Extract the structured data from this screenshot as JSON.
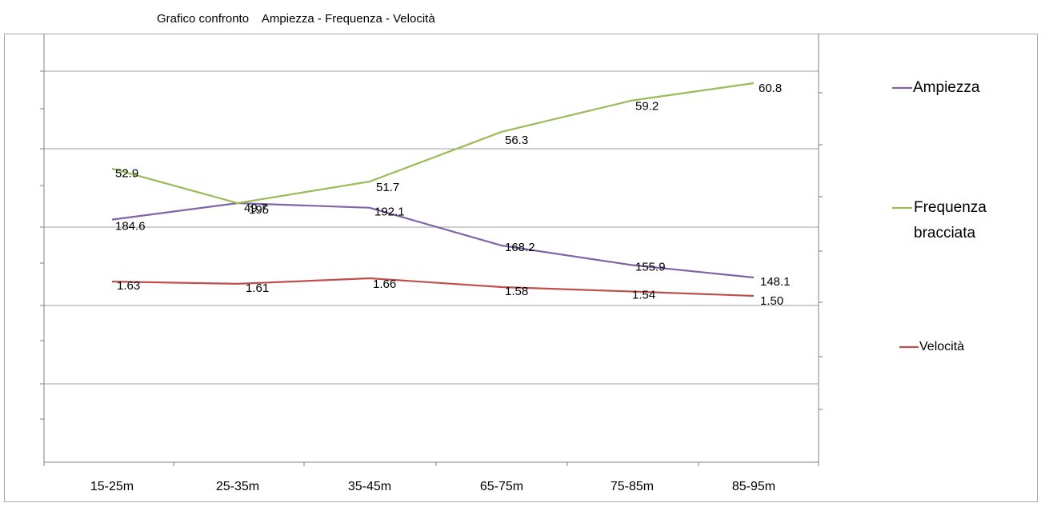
{
  "chart_data": {
    "type": "line",
    "title": "Grafico confronto    Ampiezza - Frequenza - Velocità",
    "categories": [
      "15-25m",
      "25-35m",
      "35-45m",
      "65-75m",
      "75-85m",
      "85-95m"
    ],
    "series": [
      {
        "name": "Ampiezza",
        "color": "#7f64a8",
        "values": [
          184.6,
          195.0,
          192.1,
          168.2,
          155.9,
          148.1
        ],
        "labels": [
          "184.6",
          "195",
          "192.1",
          "168.2",
          "155.9",
          "148.1"
        ]
      },
      {
        "name": "Frequenza bracciata",
        "legend_lines": [
          "Frequenza",
          "bracciata"
        ],
        "color": "#9bbb59",
        "values": [
          52.9,
          49.7,
          51.7,
          56.3,
          59.2,
          60.8
        ],
        "labels": [
          "52.9",
          "49.7",
          "51.7",
          "56.3",
          "59.2",
          "60.8"
        ]
      },
      {
        "name": "Velocità",
        "color": "#c0504d",
        "values": [
          1.63,
          1.61,
          1.66,
          1.58,
          1.54,
          1.5
        ],
        "labels": [
          "1.63",
          "1.61",
          "1.66",
          "1.58",
          "1.54",
          "1.50"
        ]
      }
    ],
    "grid": true,
    "legend_position": "right"
  }
}
